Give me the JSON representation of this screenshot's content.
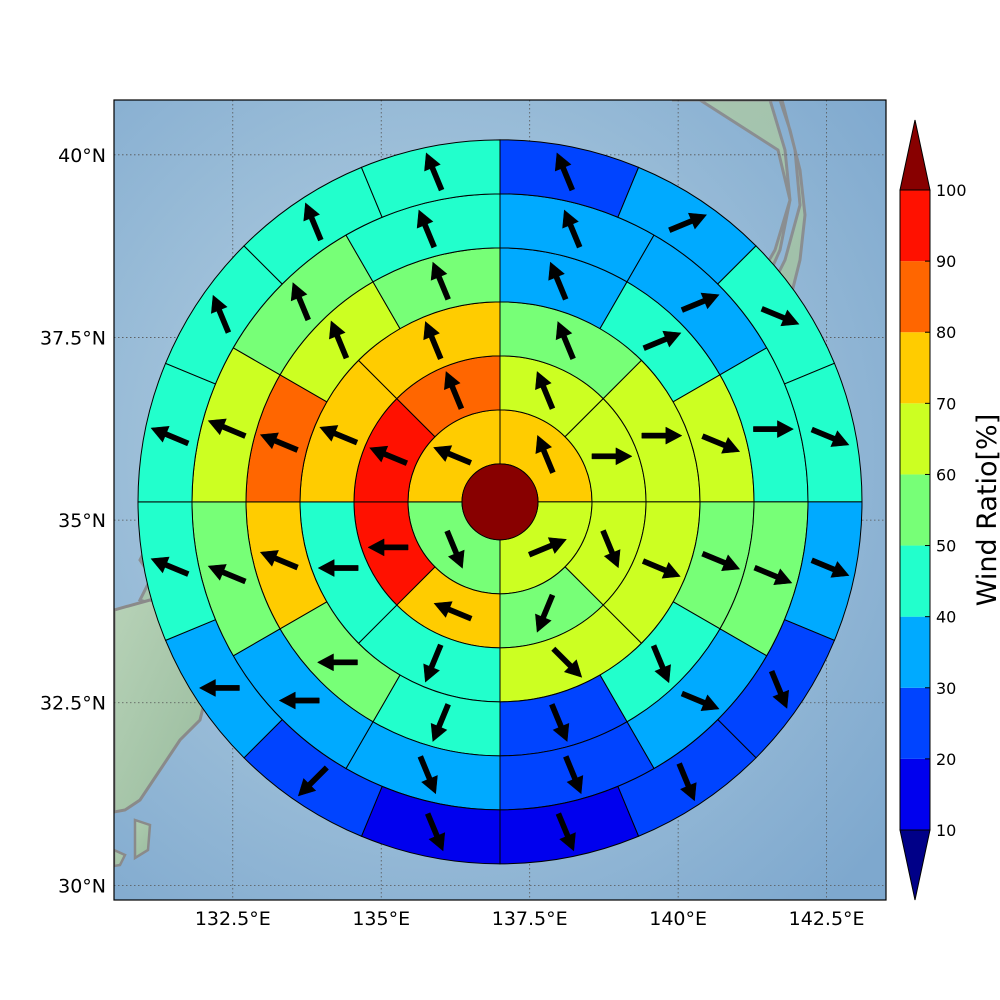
{
  "map": {
    "lat_ticks": [
      {
        "value": 40.0,
        "label": "40°N"
      },
      {
        "value": 37.5,
        "label": "37.5°N"
      },
      {
        "value": 35.0,
        "label": "35°N"
      },
      {
        "value": 32.5,
        "label": "32.5°N"
      },
      {
        "value": 30.0,
        "label": "30°N"
      }
    ],
    "lon_ticks": [
      {
        "value": 132.5,
        "label": "132.5°E"
      },
      {
        "value": 135.0,
        "label": "135°E"
      },
      {
        "value": 137.5,
        "label": "137.5°E"
      },
      {
        "value": 140.0,
        "label": "140°E"
      },
      {
        "value": 142.5,
        "label": "142.5°E"
      }
    ],
    "lon_range": [
      130.5,
      143.5
    ],
    "lat_range": [
      29.8,
      40.75
    ],
    "center": {
      "lon": 137.0,
      "lat": 35.25
    },
    "grid": "dotted",
    "basemap": "shaded-relief",
    "coastline_color": "#888888"
  },
  "chart_data": {
    "type": "heatmap",
    "subtype": "polar-sector-wind-rose",
    "rings": 6,
    "sectors_per_ring": [
      4,
      8,
      8,
      12,
      12,
      16
    ],
    "start_bearing_deg": 0,
    "cells": [
      [
        [
          71,
          "NNW"
        ],
        [
          64,
          "ENE"
        ],
        [
          55,
          "SSE"
        ],
        [
          76,
          "WNW"
        ]
      ],
      [
        [
          64,
          "NNW"
        ],
        [
          65,
          "E"
        ],
        [
          62,
          "SSE"
        ],
        [
          56,
          "SSW"
        ],
        [
          76,
          "WNW"
        ],
        [
          91,
          "W"
        ],
        [
          92,
          "WNW"
        ],
        [
          82,
          "NNW"
        ]
      ],
      [
        [
          55,
          "NNW"
        ],
        [
          63,
          "E"
        ],
        [
          64,
          "ESE"
        ],
        [
          65,
          "SE"
        ],
        [
          47,
          "SSW"
        ],
        [
          48,
          "W"
        ],
        [
          74,
          "WNW"
        ],
        [
          73,
          "NNW"
        ]
      ],
      [
        [
          35,
          "NNW"
        ],
        [
          42,
          "ENE"
        ],
        [
          67,
          "ESE"
        ],
        [
          54,
          "ESE"
        ],
        [
          45,
          "SSE"
        ],
        [
          25,
          "SSE"
        ],
        [
          45,
          "SSW"
        ],
        [
          56,
          "W"
        ],
        [
          76,
          "WNW"
        ],
        [
          84,
          "WNW"
        ],
        [
          67,
          "NNW"
        ],
        [
          54,
          "NNW"
        ]
      ],
      [
        [
          35,
          "NNW"
        ],
        [
          35,
          "ENE"
        ],
        [
          43,
          "E"
        ],
        [
          52,
          "ESE"
        ],
        [
          34,
          "ESE"
        ],
        [
          23,
          "SSE"
        ],
        [
          35,
          "SSE"
        ],
        [
          33,
          "W"
        ],
        [
          52,
          "WNW"
        ],
        [
          62,
          "WNW"
        ],
        [
          55,
          "NNW"
        ],
        [
          45,
          "NNW"
        ]
      ],
      [
        [
          23,
          "NNW"
        ],
        [
          33,
          "ENE"
        ],
        [
          43,
          "ESE"
        ],
        [
          43,
          "ESE"
        ],
        [
          33,
          "ESE"
        ],
        [
          25,
          "SSE"
        ],
        [
          22,
          "SSE"
        ],
        [
          17,
          "SSE"
        ],
        [
          12,
          "SSE"
        ],
        [
          24,
          "SW"
        ],
        [
          33,
          "W"
        ],
        [
          46,
          "WNW"
        ],
        [
          46,
          "WNW"
        ],
        [
          44,
          "NNW"
        ],
        [
          45,
          "NNW"
        ],
        [
          45,
          "NNW"
        ]
      ]
    ],
    "center_value": 100,
    "colorbar": {
      "label": "Wind Ratio[%]",
      "ticks": [
        10,
        20,
        30,
        40,
        50,
        60,
        70,
        80,
        90,
        100
      ],
      "extend": "both",
      "colors": [
        "#0000ee",
        "#0044ff",
        "#00aaff",
        "#22ffcc",
        "#77ff77",
        "#ccff22",
        "#ffcc00",
        "#ff6600",
        "#ff1100"
      ],
      "under_color": "#000088",
      "over_color": "#880000"
    }
  }
}
